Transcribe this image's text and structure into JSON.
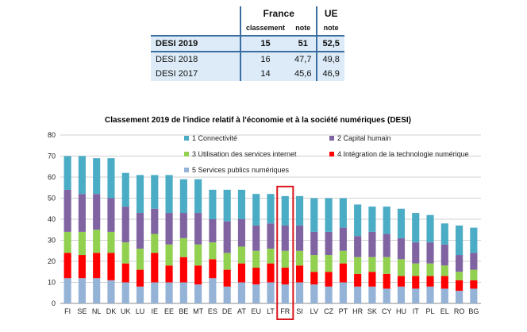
{
  "table": {
    "group_headers": [
      "France",
      "UE"
    ],
    "sub_headers": [
      "classement",
      "note",
      "note"
    ],
    "rows": [
      {
        "label": "DESI 2019",
        "rank": "15",
        "note": "51",
        "eu": "52,5"
      },
      {
        "label": "DESI 2018",
        "rank": "16",
        "note": "47,7",
        "eu": "49,8"
      },
      {
        "label": "DESI 2017",
        "rank": "14",
        "note": "45,6",
        "eu": "46,9"
      }
    ]
  },
  "chart_data": {
    "type": "bar",
    "stacked": true,
    "title": "Classement 2019 de l'indice relatif à l'économie et à la société numériques (DESI)",
    "ylim": [
      0,
      80
    ],
    "yticks": [
      0,
      10,
      20,
      30,
      40,
      50,
      60,
      70,
      80
    ],
    "grid": true,
    "legend_position": "top",
    "highlight": "FR",
    "highlight_color": "#d9181f",
    "categories": [
      "FI",
      "SE",
      "NL",
      "DK",
      "UK",
      "LU",
      "IE",
      "EE",
      "BE",
      "MT",
      "ES",
      "DE",
      "AT",
      "EU",
      "LT",
      "FR",
      "SI",
      "LV",
      "CZ",
      "PT",
      "HR",
      "SK",
      "CY",
      "HU",
      "IT",
      "PL",
      "EL",
      "RO",
      "BG"
    ],
    "series": [
      {
        "name": "5 Services publics numériques",
        "color": "#95b3d7",
        "values": [
          12,
          12,
          12,
          11,
          10,
          8,
          10,
          10,
          10,
          9,
          12,
          8,
          10,
          9,
          10,
          9,
          10,
          9,
          8,
          10,
          8,
          8,
          7,
          8,
          7,
          8,
          7,
          6,
          7
        ]
      },
      {
        "name": "4 Intégration de la technologie numérique",
        "color": "#ff0000",
        "values": [
          12,
          11,
          12,
          13,
          9,
          8,
          14,
          8,
          12,
          9,
          9,
          8,
          9,
          8,
          9,
          8,
          8,
          6,
          7,
          9,
          6,
          7,
          7,
          5,
          6,
          5,
          6,
          5,
          4
        ]
      },
      {
        "name": "3 Utilisation des services internet",
        "color": "#92d050",
        "values": [
          10,
          11,
          11,
          10,
          10,
          10,
          9,
          10,
          9,
          10,
          8,
          8,
          8,
          8,
          7,
          8,
          7,
          8,
          8,
          6,
          8,
          7,
          8,
          8,
          6,
          6,
          5,
          4,
          5
        ]
      },
      {
        "name": "2 Capital humain",
        "color": "#8064a2",
        "values": [
          20,
          18,
          17,
          16,
          17,
          17,
          12,
          15,
          12,
          15,
          11,
          15,
          13,
          12,
          12,
          12,
          12,
          11,
          11,
          11,
          10,
          12,
          11,
          10,
          10,
          10,
          10,
          8,
          8
        ]
      },
      {
        "name": "1 Connectivité",
        "color": "#4bacc6",
        "values": [
          16,
          18,
          17,
          19,
          16,
          18,
          16,
          18,
          16,
          16,
          14,
          15,
          14,
          15,
          14,
          14,
          14,
          16,
          16,
          14,
          15,
          12,
          13,
          14,
          14,
          13,
          10,
          14,
          12
        ]
      }
    ]
  }
}
